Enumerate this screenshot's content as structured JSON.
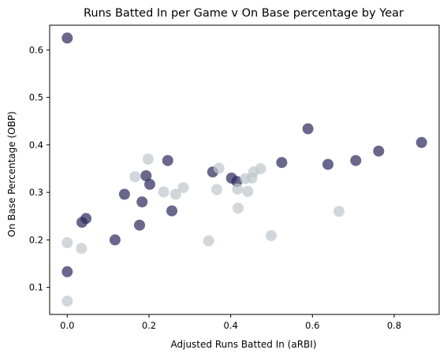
{
  "chart_data": {
    "type": "scatter",
    "title": "Runs Batted In per Game v On Base percentage by Year",
    "xlabel": "Adjusted Runs Batted In (aRBI)",
    "ylabel": "On Base Percentage (OBP)",
    "xlim": [
      -0.043,
      0.91
    ],
    "ylim": [
      0.043,
      0.652
    ],
    "xticks": [
      "0.0",
      "0.2",
      "0.4",
      "0.6",
      "0.8"
    ],
    "xtick_values": [
      0.0,
      0.2,
      0.4,
      0.6,
      0.8
    ],
    "yticks": [
      "0.1",
      "0.2",
      "0.3",
      "0.4",
      "0.5",
      "0.6"
    ],
    "ytick_values": [
      0.1,
      0.2,
      0.3,
      0.4,
      0.5,
      0.6
    ],
    "grid": false,
    "series": [
      {
        "color": "#2f2d5f",
        "points": [
          {
            "x": 0.0,
            "y": 0.625
          },
          {
            "x": 0.0,
            "y": 0.133
          },
          {
            "x": 0.036,
            "y": 0.237
          },
          {
            "x": 0.046,
            "y": 0.245
          },
          {
            "x": 0.117,
            "y": 0.2
          },
          {
            "x": 0.14,
            "y": 0.296
          },
          {
            "x": 0.177,
            "y": 0.231
          },
          {
            "x": 0.183,
            "y": 0.28
          },
          {
            "x": 0.193,
            "y": 0.335
          },
          {
            "x": 0.202,
            "y": 0.317
          },
          {
            "x": 0.246,
            "y": 0.367
          },
          {
            "x": 0.256,
            "y": 0.261
          },
          {
            "x": 0.356,
            "y": 0.343
          },
          {
            "x": 0.402,
            "y": 0.33
          },
          {
            "x": 0.415,
            "y": 0.323
          },
          {
            "x": 0.525,
            "y": 0.363
          },
          {
            "x": 0.589,
            "y": 0.434
          },
          {
            "x": 0.638,
            "y": 0.359
          },
          {
            "x": 0.706,
            "y": 0.367
          },
          {
            "x": 0.762,
            "y": 0.387
          },
          {
            "x": 0.867,
            "y": 0.405
          }
        ]
      },
      {
        "color": "#bfc8cc",
        "points": [
          {
            "x": 0.0,
            "y": 0.194
          },
          {
            "x": 0.0,
            "y": 0.071
          },
          {
            "x": 0.035,
            "y": 0.182
          },
          {
            "x": 0.166,
            "y": 0.333
          },
          {
            "x": 0.198,
            "y": 0.37
          },
          {
            "x": 0.236,
            "y": 0.301
          },
          {
            "x": 0.265,
            "y": 0.296
          },
          {
            "x": 0.284,
            "y": 0.31
          },
          {
            "x": 0.346,
            "y": 0.198
          },
          {
            "x": 0.366,
            "y": 0.306
          },
          {
            "x": 0.371,
            "y": 0.351
          },
          {
            "x": 0.417,
            "y": 0.307
          },
          {
            "x": 0.418,
            "y": 0.267
          },
          {
            "x": 0.436,
            "y": 0.329
          },
          {
            "x": 0.442,
            "y": 0.302
          },
          {
            "x": 0.452,
            "y": 0.33
          },
          {
            "x": 0.456,
            "y": 0.343
          },
          {
            "x": 0.473,
            "y": 0.35
          },
          {
            "x": 0.499,
            "y": 0.209
          },
          {
            "x": 0.665,
            "y": 0.26
          }
        ]
      }
    ]
  }
}
